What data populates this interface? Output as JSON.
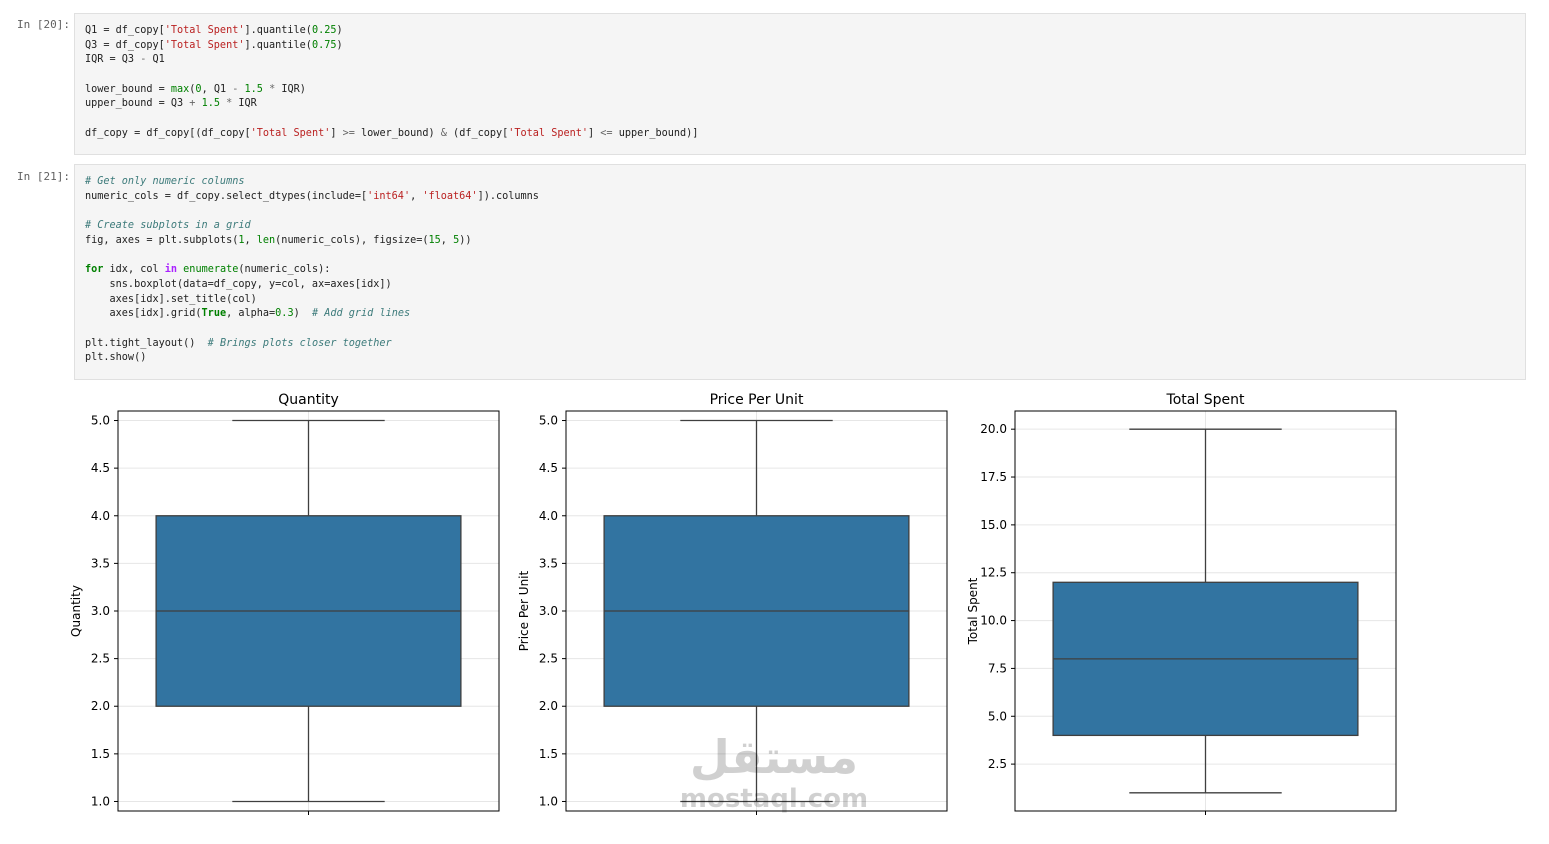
{
  "cells": [
    {
      "prompt": "In [20]:",
      "lines": [
        [
          {
            "t": "Q1 = df_copy["
          },
          {
            "t": "'Total Spent'",
            "c": "str"
          },
          {
            "t": "].quantile("
          },
          {
            "t": "0.25",
            "c": "num"
          },
          {
            "t": ")"
          }
        ],
        [
          {
            "t": "Q3 = df_copy["
          },
          {
            "t": "'Total Spent'",
            "c": "str"
          },
          {
            "t": "].quantile("
          },
          {
            "t": "0.75",
            "c": "num"
          },
          {
            "t": ")"
          }
        ],
        [
          {
            "t": "IQR = Q3 "
          },
          {
            "t": "-",
            "c": "opl"
          },
          {
            "t": " Q1"
          }
        ],
        [],
        [
          {
            "t": "lower_bound = "
          },
          {
            "t": "max",
            "c": "bi"
          },
          {
            "t": "("
          },
          {
            "t": "0",
            "c": "num"
          },
          {
            "t": ", Q1 "
          },
          {
            "t": "-",
            "c": "opl"
          },
          {
            "t": " "
          },
          {
            "t": "1.5",
            "c": "num"
          },
          {
            "t": " "
          },
          {
            "t": "*",
            "c": "opl"
          },
          {
            "t": " IQR)"
          }
        ],
        [
          {
            "t": "upper_bound = Q3 "
          },
          {
            "t": "+",
            "c": "opl"
          },
          {
            "t": " "
          },
          {
            "t": "1.5",
            "c": "num"
          },
          {
            "t": " "
          },
          {
            "t": "*",
            "c": "opl"
          },
          {
            "t": " IQR"
          }
        ],
        [],
        [
          {
            "t": "df_copy = df_copy[(df_copy["
          },
          {
            "t": "'Total Spent'",
            "c": "str"
          },
          {
            "t": "] "
          },
          {
            "t": ">=",
            "c": "opl"
          },
          {
            "t": " lower_bound) "
          },
          {
            "t": "&",
            "c": "opl"
          },
          {
            "t": " (df_copy["
          },
          {
            "t": "'Total Spent'",
            "c": "str"
          },
          {
            "t": "] "
          },
          {
            "t": "<=",
            "c": "opl"
          },
          {
            "t": " upper_bound)]"
          }
        ]
      ]
    },
    {
      "prompt": "In [21]:",
      "lines": [
        [
          {
            "t": "# Get only numeric columns",
            "c": "com"
          }
        ],
        [
          {
            "t": "numeric_cols = df_copy.select_dtypes(include=["
          },
          {
            "t": "'int64'",
            "c": "str"
          },
          {
            "t": ", "
          },
          {
            "t": "'float64'",
            "c": "str"
          },
          {
            "t": "]).columns"
          }
        ],
        [],
        [
          {
            "t": "# Create subplots in a grid",
            "c": "com"
          }
        ],
        [
          {
            "t": "fig, axes = plt.subplots("
          },
          {
            "t": "1",
            "c": "num"
          },
          {
            "t": ", "
          },
          {
            "t": "len",
            "c": "bi"
          },
          {
            "t": "(numeric_cols), figsize=("
          },
          {
            "t": "15",
            "c": "num"
          },
          {
            "t": ", "
          },
          {
            "t": "5",
            "c": "num"
          },
          {
            "t": "))"
          }
        ],
        [],
        [
          {
            "t": "for",
            "c": "kw"
          },
          {
            "t": " idx, col "
          },
          {
            "t": "in",
            "c": "op"
          },
          {
            "t": " "
          },
          {
            "t": "enumerate",
            "c": "bi"
          },
          {
            "t": "(numeric_cols):"
          }
        ],
        [
          {
            "t": "    sns.boxplot(data=df_copy, y=col, ax=axes[idx])"
          }
        ],
        [
          {
            "t": "    axes[idx].set_title(col)"
          }
        ],
        [
          {
            "t": "    axes[idx].grid("
          },
          {
            "t": "True",
            "c": "kw"
          },
          {
            "t": ", alpha="
          },
          {
            "t": "0.3",
            "c": "num"
          },
          {
            "t": ")  "
          },
          {
            "t": "# Add grid lines",
            "c": "com"
          }
        ],
        [],
        [
          {
            "t": "plt.tight_layout()  "
          },
          {
            "t": "# Brings plots closer together",
            "c": "com"
          }
        ],
        [
          {
            "t": "plt.show()"
          }
        ]
      ]
    }
  ],
  "colors": {
    "box_fill": "#3274a1",
    "line": "#3f3f3f",
    "grid": "#e6e6e6"
  },
  "chart_data": [
    {
      "type": "box",
      "title": "Quantity",
      "ylabel": "Quantity",
      "ylim": [
        0.9,
        5.1
      ],
      "yticks": [
        1.0,
        1.5,
        2.0,
        2.5,
        3.0,
        3.5,
        4.0,
        4.5,
        5.0
      ],
      "ytick_labels": [
        "1.0",
        "1.5",
        "2.0",
        "2.5",
        "3.0",
        "3.5",
        "4.0",
        "4.5",
        "5.0"
      ],
      "whisker_low": 1.0,
      "q1": 2.0,
      "median": 3.0,
      "q3": 4.0,
      "whisker_high": 5.0,
      "grid": true
    },
    {
      "type": "box",
      "title": "Price Per Unit",
      "ylabel": "Price Per Unit",
      "ylim": [
        0.9,
        5.1
      ],
      "yticks": [
        1.0,
        1.5,
        2.0,
        2.5,
        3.0,
        3.5,
        4.0,
        4.5,
        5.0
      ],
      "ytick_labels": [
        "1.0",
        "1.5",
        "2.0",
        "2.5",
        "3.0",
        "3.5",
        "4.0",
        "4.5",
        "5.0"
      ],
      "whisker_low": 1.0,
      "q1": 2.0,
      "median": 3.0,
      "q3": 4.0,
      "whisker_high": 5.0,
      "grid": true
    },
    {
      "type": "box",
      "title": "Total Spent",
      "ylabel": "Total Spent",
      "ylim": [
        0.05,
        20.95
      ],
      "yticks": [
        2.5,
        5.0,
        7.5,
        10.0,
        12.5,
        15.0,
        17.5,
        20.0
      ],
      "ytick_labels": [
        "2.5",
        "5.0",
        "7.5",
        "10.0",
        "12.5",
        "15.0",
        "17.5",
        "20.0"
      ],
      "whisker_low": 1.0,
      "q1": 4.0,
      "median": 8.0,
      "q3": 12.0,
      "whisker_high": 20.0,
      "grid": true
    }
  ],
  "watermark": {
    "arabic": "مستقل",
    "latin": "mostaql.com"
  }
}
